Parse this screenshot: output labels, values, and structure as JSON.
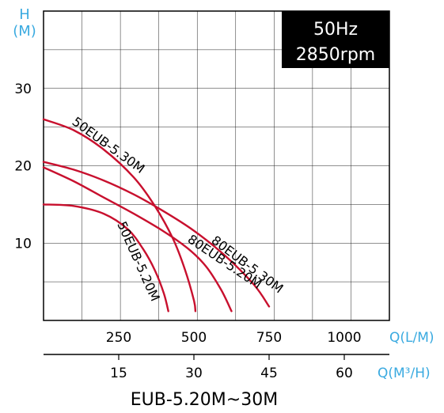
{
  "chart_data": {
    "type": "line",
    "title": "EUB-5.20M~30M",
    "info_box": [
      "50Hz",
      "2850rpm"
    ],
    "y_axis": {
      "label_lines": [
        "H",
        "(M)"
      ],
      "ylim": [
        0,
        40
      ],
      "ticks": [
        10,
        20,
        30
      ],
      "tick_labels": [
        "10",
        "20",
        "30"
      ]
    },
    "x_axis": {
      "label": "Q(L/M)",
      "xlim": [
        0,
        1150
      ],
      "ticks": [
        250,
        500,
        750,
        1000
      ],
      "tick_labels": [
        "250",
        "500",
        "750",
        "1000"
      ]
    },
    "x2_axis": {
      "label": "Q(M³/H)",
      "ticks": [
        15,
        30,
        45,
        60
      ],
      "tick_labels": [
        "15",
        "30",
        "45",
        "60"
      ],
      "factor_to_lpm": 16.6667
    },
    "grid": true,
    "colors": {
      "curve": "#c8102e",
      "axis_label": "#3aaae0",
      "box": "#000000",
      "box_text": "#ffffff",
      "grid": "#222222"
    },
    "series": [
      {
        "name": "50EUB-5.20M",
        "x": [
          0,
          100,
          200,
          280,
          330,
          370,
          400,
          415
        ],
        "y": [
          15,
          14.8,
          13.8,
          11.8,
          9.3,
          6.5,
          3.5,
          1.2
        ]
      },
      {
        "name": "50EUB-5.30M",
        "x": [
          0,
          100,
          200,
          300,
          370,
          430,
          470,
          500,
          505
        ],
        "y": [
          26,
          24.6,
          22.1,
          18.5,
          14.8,
          10.6,
          6.6,
          2.6,
          1.2
        ]
      },
      {
        "name": "80EUB-5.20M",
        "x": [
          0,
          100,
          200,
          300,
          400,
          480,
          540,
          590,
          625
        ],
        "y": [
          19.8,
          18,
          15.9,
          13.8,
          11.5,
          9.3,
          7,
          4,
          1.2
        ]
      },
      {
        "name": "80EUB-5.30M",
        "x": [
          0,
          100,
          200,
          300,
          400,
          500,
          600,
          700,
          750
        ],
        "y": [
          20.5,
          19.5,
          18.1,
          16.3,
          14.1,
          11.6,
          8.5,
          4.6,
          1.8
        ]
      }
    ],
    "curve_labels": [
      {
        "series": 0,
        "text": "50EUB-5.20M"
      },
      {
        "series": 1,
        "text": "50EUB-5.30M"
      },
      {
        "series": 2,
        "text": "80EUB-5.20M"
      },
      {
        "series": 3,
        "text": "80EUB-5.30M"
      }
    ]
  }
}
